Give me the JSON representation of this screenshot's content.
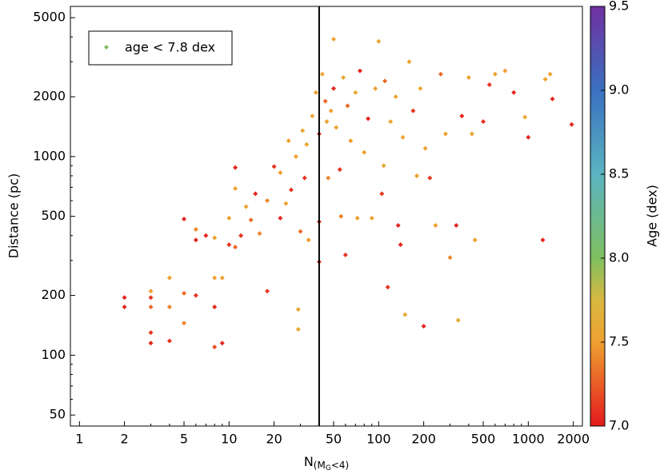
{
  "chart_data": {
    "type": "scatter",
    "xlabel": {
      "main": "N",
      "sub": [
        "(M",
        "G",
        "<4)"
      ]
    },
    "ylabel": "Distance (pc)",
    "colorbar_label": "Age (dex)",
    "legend_label": "age < 7.8 dex",
    "legend_color": "#7fbf60",
    "legend_loc": "upper left",
    "log_x": true,
    "log_y": true,
    "xlim": [
      0.87,
      2300
    ],
    "ylim": [
      44,
      5700
    ],
    "xticks": [
      1,
      2,
      5,
      10,
      20,
      50,
      100,
      200,
      500,
      1000,
      2000
    ],
    "xminor_ticks": [
      3,
      4,
      6,
      7,
      8,
      9,
      30,
      40,
      60,
      70,
      80,
      90,
      300,
      400,
      600,
      700,
      800,
      900
    ],
    "yticks": [
      50,
      100,
      200,
      500,
      1000,
      2000,
      5000
    ],
    "yminor_ticks": [
      60,
      70,
      80,
      90,
      300,
      400,
      600,
      700,
      800,
      900,
      3000,
      4000
    ],
    "clim": [
      7.0,
      9.5
    ],
    "cticks": [
      {
        "value": 7,
        "label": "7.0"
      },
      7.5,
      {
        "value": 8,
        "label": "8.0"
      },
      8.5,
      {
        "value": 9,
        "label": "9.0"
      },
      9.5
    ],
    "vline_x": 40,
    "x": [
      2,
      2,
      3,
      3,
      3,
      3,
      3,
      4,
      4,
      4,
      5,
      5,
      5,
      6,
      6,
      6,
      7,
      8,
      8,
      8,
      8,
      9,
      9,
      10,
      10,
      11,
      11,
      11,
      12,
      13,
      14,
      15,
      16,
      18,
      18,
      20,
      22,
      22,
      24,
      25,
      26,
      28,
      29,
      29,
      30,
      31,
      32,
      33,
      34,
      36,
      38,
      40,
      40,
      40,
      42,
      44,
      45,
      46,
      48,
      50,
      50,
      52,
      55,
      56,
      58,
      60,
      62,
      65,
      70,
      72,
      75,
      80,
      85,
      90,
      95,
      100,
      105,
      108,
      110,
      115,
      120,
      130,
      135,
      140,
      145,
      150,
      160,
      170,
      180,
      190,
      200,
      205,
      220,
      240,
      260,
      280,
      300,
      330,
      340,
      360,
      400,
      420,
      440,
      500,
      550,
      600,
      700,
      800,
      950,
      1000,
      1300,
      1250,
      1400,
      1450,
      1950
    ],
    "y": [
      195,
      175,
      210,
      195,
      175,
      130,
      115,
      245,
      175,
      118,
      485,
      205,
      145,
      430,
      380,
      200,
      400,
      390,
      245,
      175,
      110,
      245,
      115,
      490,
      360,
      880,
      690,
      350,
      400,
      560,
      480,
      650,
      410,
      600,
      210,
      890,
      830,
      490,
      580,
      1200,
      680,
      1000,
      170,
      135,
      420,
      1350,
      780,
      1150,
      380,
      1600,
      2100,
      1300,
      470,
      295,
      2600,
      1900,
      1500,
      780,
      1700,
      3900,
      2200,
      1400,
      860,
      500,
      2500,
      320,
      1800,
      1200,
      2100,
      490,
      2700,
      1050,
      1550,
      490,
      2200,
      3800,
      650,
      900,
      2400,
      220,
      1500,
      2000,
      450,
      360,
      1250,
      160,
      3000,
      1700,
      800,
      2200,
      140,
      1100,
      780,
      450,
      2600,
      1300,
      310,
      450,
      150,
      1600,
      2500,
      1300,
      380,
      1500,
      2300,
      2600,
      2700,
      2100,
      1580,
      1250,
      2450,
      380,
      2600,
      1950,
      1450
    ],
    "age": [
      7.05,
      7.05,
      7.5,
      7.1,
      7.3,
      7.1,
      7.05,
      7.5,
      7.4,
      7.1,
      7.05,
      7.3,
      7.4,
      7.4,
      7.05,
      7.1,
      7.05,
      7.5,
      7.5,
      7.05,
      7.2,
      7.5,
      7.05,
      7.5,
      7.1,
      7.05,
      7.55,
      7.3,
      7.1,
      7.5,
      7.3,
      7.05,
      7.4,
      7.4,
      7.1,
      7.1,
      7.5,
      7.05,
      7.5,
      7.5,
      7.1,
      7.5,
      7.6,
      7.6,
      7.3,
      7.55,
      7.1,
      7.55,
      7.5,
      7.55,
      7.5,
      7.1,
      7.1,
      7.1,
      7.55,
      7.3,
      7.5,
      7.4,
      7.5,
      7.55,
      7.05,
      7.5,
      7.1,
      7.4,
      7.55,
      7.1,
      7.3,
      7.5,
      7.6,
      7.5,
      7.05,
      7.5,
      7.05,
      7.5,
      7.5,
      7.55,
      7.1,
      7.6,
      7.3,
      7.1,
      7.5,
      7.55,
      7.05,
      7.05,
      7.5,
      7.6,
      7.55,
      7.1,
      7.5,
      7.55,
      7.05,
      7.5,
      7.1,
      7.5,
      7.3,
      7.5,
      7.4,
      7.05,
      7.6,
      7.05,
      7.55,
      7.5,
      7.5,
      7.1,
      7.1,
      7.55,
      7.5,
      7.05,
      7.55,
      7.05,
      7.5,
      7.05,
      7.5,
      7.05,
      7.05
    ]
  }
}
